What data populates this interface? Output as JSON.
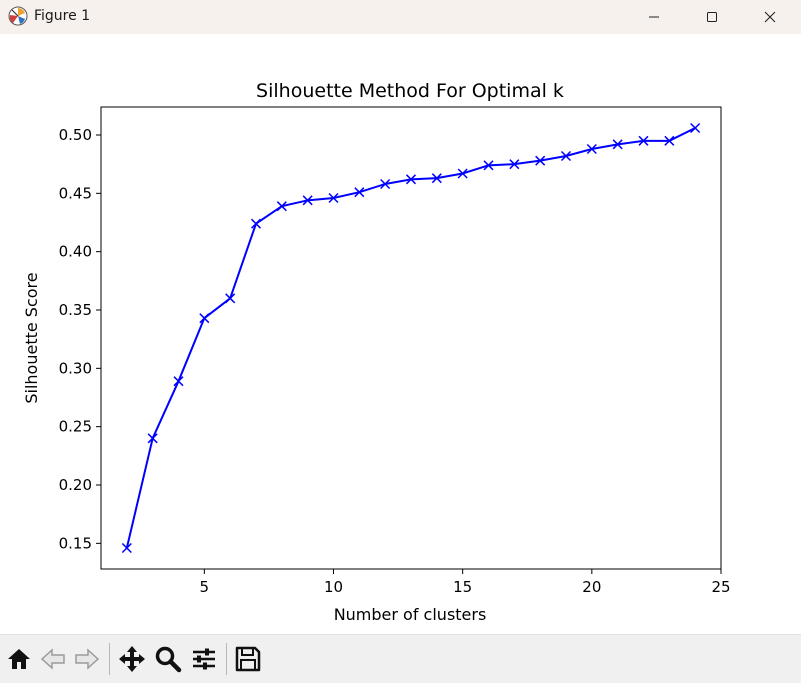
{
  "window": {
    "title": "Figure 1",
    "icons": [
      "matplotlib-logo-icon",
      "minimize-icon",
      "maximize-icon",
      "close-icon"
    ]
  },
  "toolbar": {
    "tools": [
      "home-icon",
      "back-arrow-icon",
      "forward-arrow-icon",
      "pan-move-icon",
      "zoom-magnifier-icon",
      "configure-subplots-icon",
      "save-floppy-icon"
    ]
  },
  "chart_data": {
    "type": "line",
    "title": "Silhouette Method For Optimal k",
    "xlabel": "Number of clusters",
    "ylabel": "Silhouette Score",
    "x": [
      2,
      3,
      4,
      5,
      6,
      7,
      8,
      9,
      10,
      11,
      12,
      13,
      14,
      15,
      16,
      17,
      18,
      19,
      20,
      21,
      22,
      23,
      24
    ],
    "series": [
      {
        "values": [
          0.146,
          0.24,
          0.289,
          0.343,
          0.36,
          0.424,
          0.439,
          0.444,
          0.446,
          0.451,
          0.458,
          0.462,
          0.463,
          0.467,
          0.474,
          0.475,
          0.478,
          0.482,
          0.488,
          0.492,
          0.495,
          0.495,
          0.506
        ],
        "color": "#0000ff",
        "marker": "x"
      }
    ],
    "xlim": [
      1.0,
      25.0
    ],
    "ylim": [
      0.128,
      0.524
    ],
    "xticks": [
      5,
      10,
      15,
      20,
      25
    ],
    "xtick_labels": [
      "5",
      "10",
      "15",
      "20",
      "25"
    ],
    "yticks": [
      0.15,
      0.2,
      0.25,
      0.3,
      0.35,
      0.4,
      0.45,
      0.5
    ],
    "ytick_labels": [
      "0.15",
      "0.20",
      "0.25",
      "0.30",
      "0.35",
      "0.40",
      "0.45",
      "0.50"
    ],
    "grid": false,
    "legend": false
  }
}
